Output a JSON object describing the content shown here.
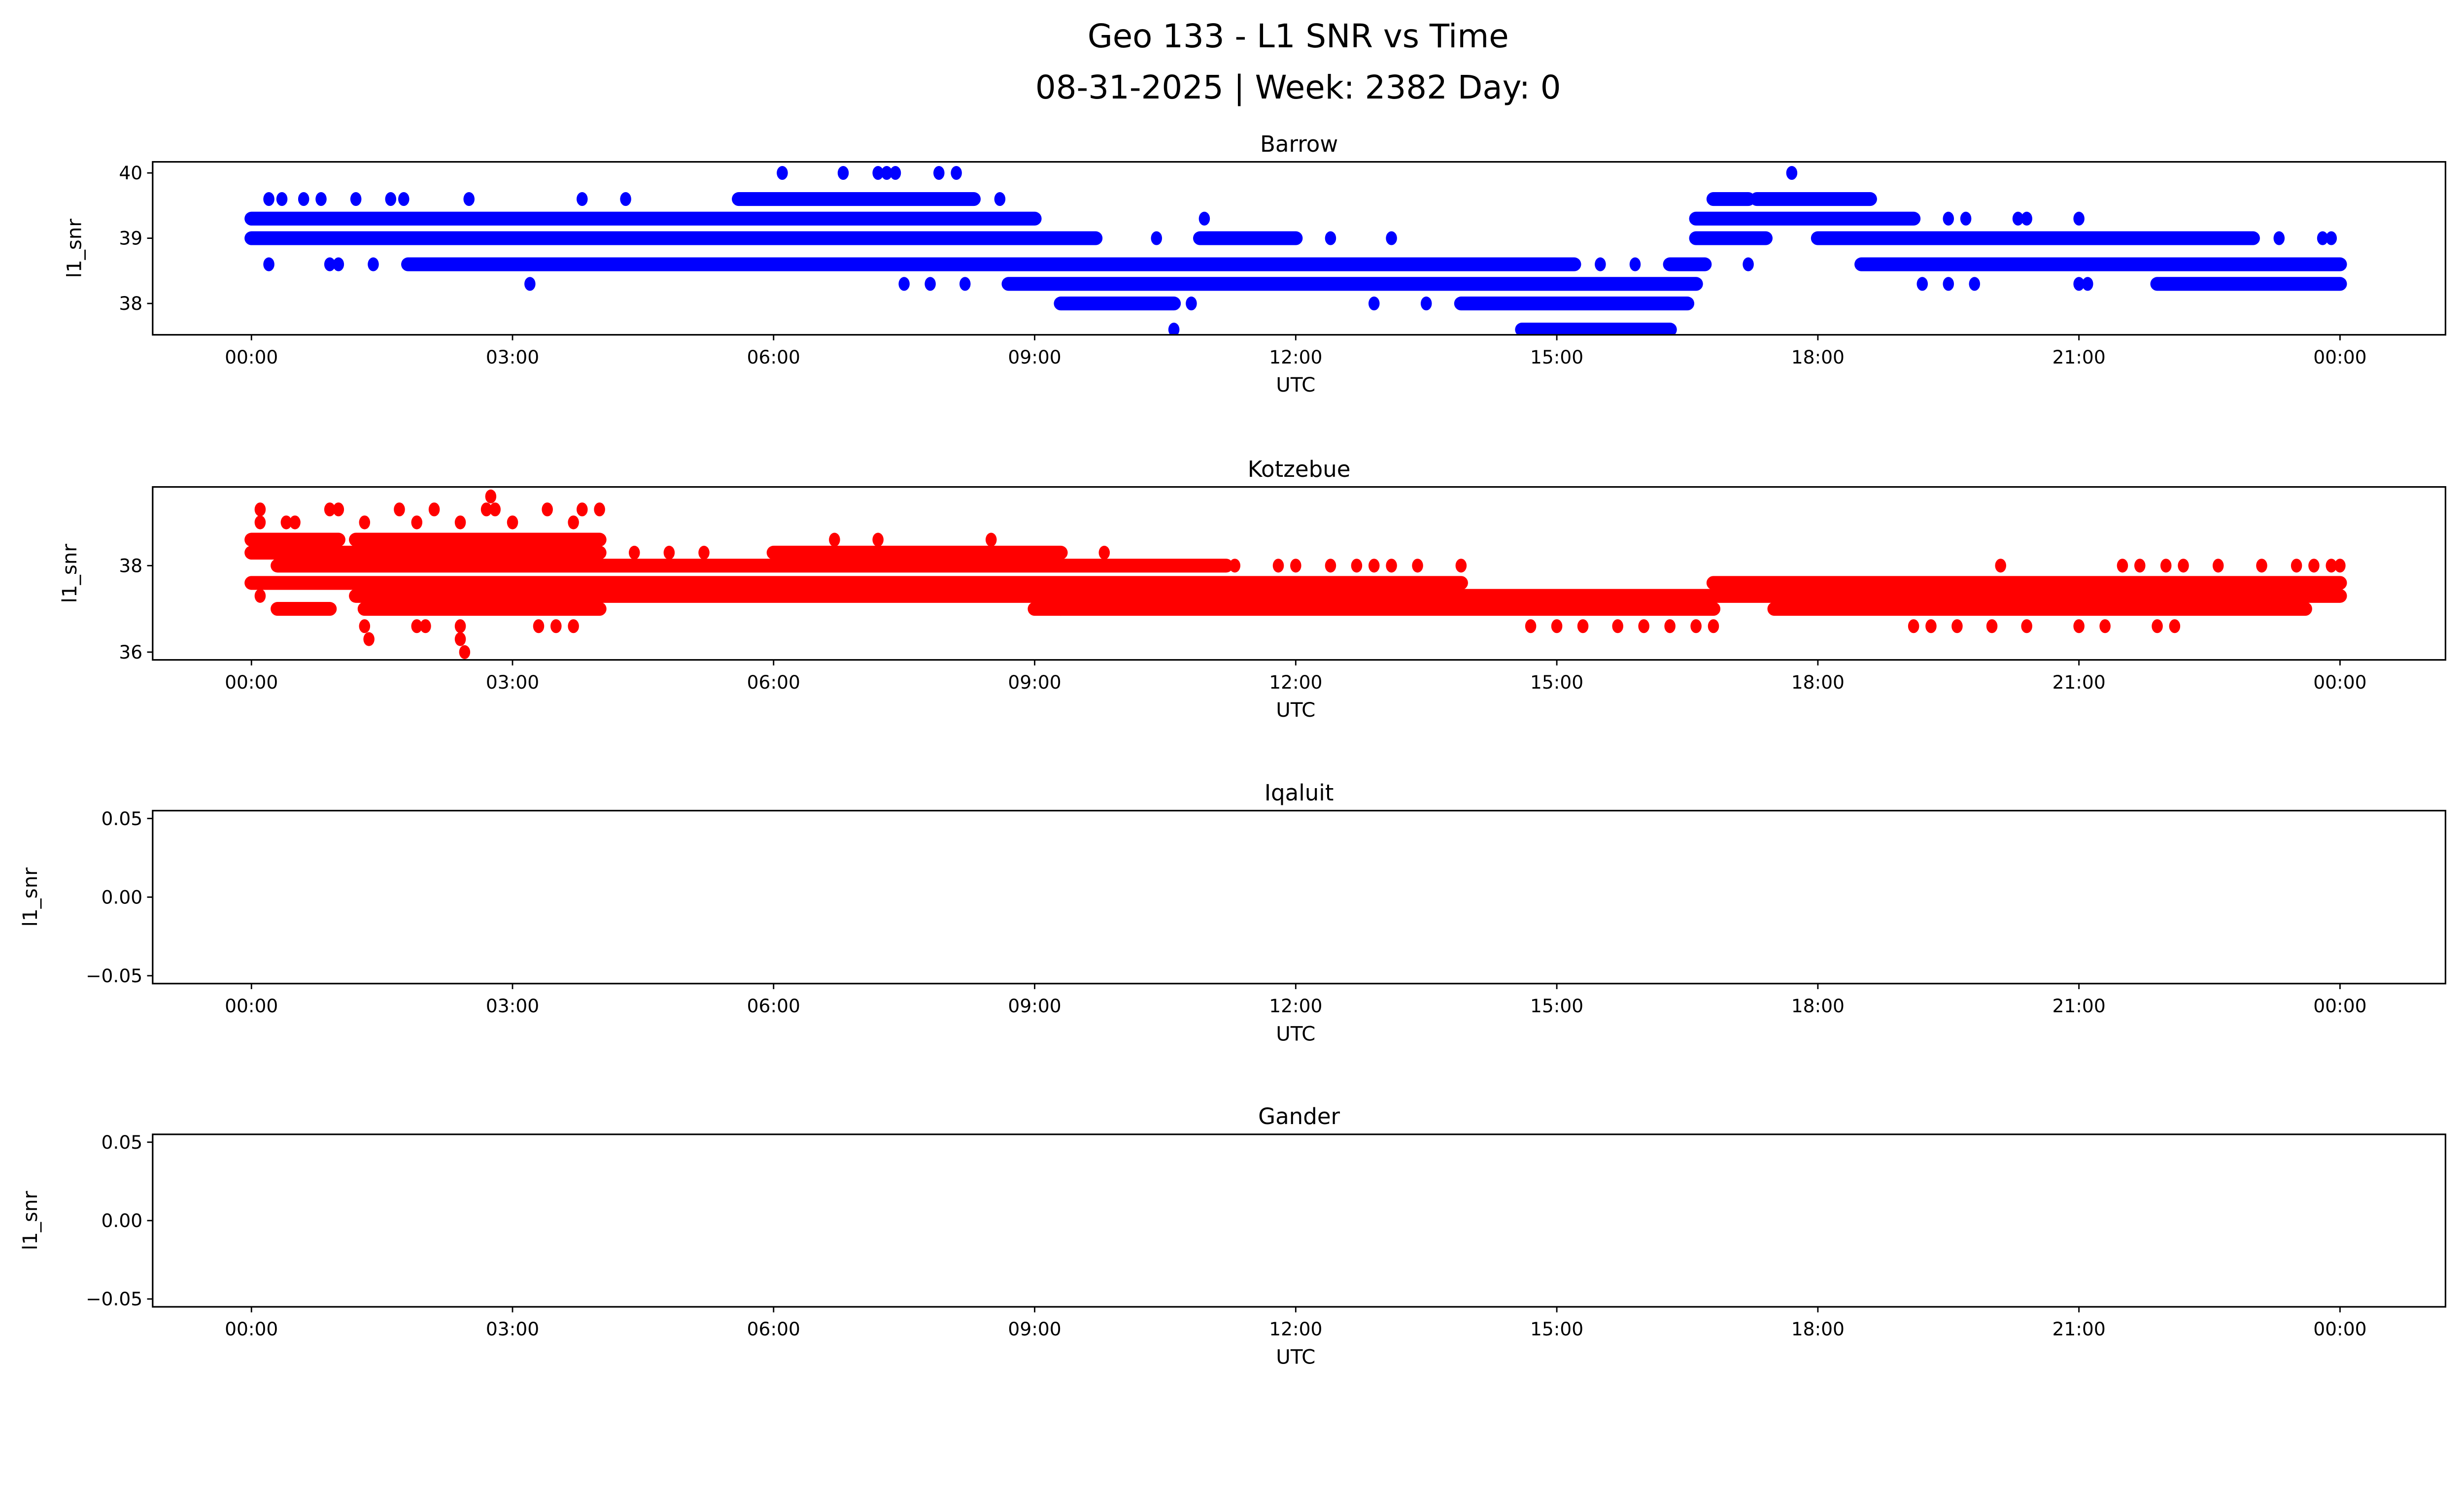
{
  "title_line1": "Geo 133 - L1 SNR vs Time",
  "title_line2": "08-31-2025 | Week: 2382 Day: 0",
  "chart_data": [
    {
      "type": "scatter",
      "title": "Barrow",
      "xlabel": "UTC",
      "ylabel": "l1_snr",
      "color": "#0000ff",
      "xlim_hours": [
        0,
        24
      ],
      "x_ticks": [
        {
          "h": 0,
          "label": "00:00"
        },
        {
          "h": 3,
          "label": "03:00"
        },
        {
          "h": 6,
          "label": "06:00"
        },
        {
          "h": 9,
          "label": "09:00"
        },
        {
          "h": 12,
          "label": "12:00"
        },
        {
          "h": 15,
          "label": "15:00"
        },
        {
          "h": 18,
          "label": "18:00"
        },
        {
          "h": 21,
          "label": "21:00"
        },
        {
          "h": 24,
          "label": "00:00"
        }
      ],
      "ylim": [
        37.52,
        40.17
      ],
      "y_ticks": [
        {
          "v": 38,
          "label": "38"
        },
        {
          "v": 39,
          "label": "39"
        },
        {
          "v": 40,
          "label": "40"
        }
      ],
      "dense_runs": [
        [
          39.3,
          0,
          9.0
        ],
        [
          39.3,
          16.6,
          19.1
        ],
        [
          39.0,
          0,
          9.7
        ],
        [
          39.0,
          10.9,
          12.0
        ],
        [
          39.0,
          16.6,
          17.4
        ],
        [
          39.0,
          18.0,
          23.0
        ],
        [
          38.6,
          1.8,
          15.2
        ],
        [
          38.6,
          16.3,
          16.7
        ],
        [
          38.6,
          18.5,
          24
        ],
        [
          38.3,
          8.7,
          16.6
        ],
        [
          38.3,
          21.9,
          24
        ],
        [
          38.0,
          9.3,
          10.6
        ],
        [
          38.0,
          13.9,
          16.5
        ],
        [
          37.6,
          14.6,
          16.3
        ],
        [
          39.6,
          5.6,
          8.3
        ],
        [
          39.6,
          16.8,
          17.2
        ],
        [
          39.6,
          17.3,
          18.6
        ]
      ],
      "points": [
        [
          0.2,
          39.6
        ],
        [
          0.35,
          39.6
        ],
        [
          0.6,
          39.6
        ],
        [
          0.8,
          39.6
        ],
        [
          1.2,
          39.6
        ],
        [
          1.6,
          39.6
        ],
        [
          1.75,
          39.6
        ],
        [
          2.5,
          39.6
        ],
        [
          3.8,
          39.6
        ],
        [
          4.3,
          39.6
        ],
        [
          8.6,
          39.6
        ],
        [
          6.1,
          40
        ],
        [
          6.8,
          40
        ],
        [
          7.2,
          40
        ],
        [
          7.3,
          40
        ],
        [
          7.4,
          40
        ],
        [
          7.9,
          40
        ],
        [
          8.1,
          40
        ],
        [
          17.7,
          40
        ],
        [
          10.95,
          39.3
        ],
        [
          19.5,
          39.3
        ],
        [
          19.7,
          39.3
        ],
        [
          20.3,
          39.3
        ],
        [
          20.4,
          39.3
        ],
        [
          21.0,
          39.3
        ],
        [
          10.4,
          39.0
        ],
        [
          12.4,
          39.0
        ],
        [
          13.1,
          39.0
        ],
        [
          23.3,
          39.0
        ],
        [
          23.8,
          39.0
        ],
        [
          23.9,
          39.0
        ],
        [
          0.2,
          38.6
        ],
        [
          0.9,
          38.6
        ],
        [
          1.0,
          38.6
        ],
        [
          1.4,
          38.6
        ],
        [
          15.5,
          38.6
        ],
        [
          15.9,
          38.6
        ],
        [
          17.2,
          38.6
        ],
        [
          3.2,
          38.3
        ],
        [
          7.5,
          38.3
        ],
        [
          7.8,
          38.3
        ],
        [
          8.2,
          38.3
        ],
        [
          19.2,
          38.3
        ],
        [
          19.5,
          38.3
        ],
        [
          19.8,
          38.3
        ],
        [
          21.0,
          38.3
        ],
        [
          21.1,
          38.3
        ],
        [
          10.8,
          38.0
        ],
        [
          12.9,
          38.0
        ],
        [
          13.5,
          38.0
        ],
        [
          10.6,
          37.6
        ]
      ]
    },
    {
      "type": "scatter",
      "title": "Kotzebue",
      "xlabel": "UTC",
      "ylabel": "l1_snr",
      "color": "#ff0000",
      "xlim_hours": [
        0,
        24
      ],
      "x_ticks": [
        {
          "h": 0,
          "label": "00:00"
        },
        {
          "h": 3,
          "label": "03:00"
        },
        {
          "h": 6,
          "label": "06:00"
        },
        {
          "h": 9,
          "label": "09:00"
        },
        {
          "h": 12,
          "label": "12:00"
        },
        {
          "h": 15,
          "label": "15:00"
        },
        {
          "h": 18,
          "label": "18:00"
        },
        {
          "h": 21,
          "label": "21:00"
        },
        {
          "h": 24,
          "label": "00:00"
        }
      ],
      "ylim": [
        35.82,
        39.82
      ],
      "y_ticks": [
        {
          "v": 36,
          "label": "36"
        },
        {
          "v": 38,
          "label": "38"
        }
      ],
      "dense_runs": [
        [
          38.0,
          0.3,
          11.2
        ],
        [
          37.6,
          0,
          13.9
        ],
        [
          37.6,
          16.8,
          24
        ],
        [
          37.3,
          1.2,
          24
        ],
        [
          37.0,
          0.3,
          0.9
        ],
        [
          37.0,
          1.3,
          4.0
        ],
        [
          37.0,
          9.0,
          16.8
        ],
        [
          37.0,
          17.5,
          23.6
        ],
        [
          38.3,
          0,
          4.0
        ],
        [
          38.3,
          6.0,
          9.3
        ],
        [
          38.6,
          0,
          1.0
        ],
        [
          38.6,
          1.2,
          4.0
        ]
      ],
      "points": [
        [
          0.1,
          39.3
        ],
        [
          0.9,
          39.3
        ],
        [
          1.0,
          39.3
        ],
        [
          1.7,
          39.3
        ],
        [
          2.1,
          39.3
        ],
        [
          2.7,
          39.3
        ],
        [
          2.8,
          39.3
        ],
        [
          3.4,
          39.3
        ],
        [
          3.8,
          39.3
        ],
        [
          4.0,
          39.3
        ],
        [
          2.75,
          39.6
        ],
        [
          0.1,
          39.0
        ],
        [
          0.4,
          39.0
        ],
        [
          0.5,
          39.0
        ],
        [
          1.3,
          39.0
        ],
        [
          1.9,
          39.0
        ],
        [
          2.4,
          39.0
        ],
        [
          3.0,
          39.0
        ],
        [
          3.7,
          39.0
        ],
        [
          6.7,
          38.6
        ],
        [
          7.2,
          38.6
        ],
        [
          8.5,
          38.6
        ],
        [
          4.4,
          38.3
        ],
        [
          4.8,
          38.3
        ],
        [
          5.2,
          38.3
        ],
        [
          9.8,
          38.3
        ],
        [
          11.3,
          38.0
        ],
        [
          11.8,
          38.0
        ],
        [
          12.0,
          38.0
        ],
        [
          12.4,
          38.0
        ],
        [
          12.7,
          38.0
        ],
        [
          12.9,
          38.0
        ],
        [
          13.1,
          38.0
        ],
        [
          13.4,
          38.0
        ],
        [
          13.9,
          38.0
        ],
        [
          20.1,
          38.0
        ],
        [
          21.5,
          38.0
        ],
        [
          21.7,
          38.0
        ],
        [
          22.0,
          38.0
        ],
        [
          22.2,
          38.0
        ],
        [
          22.6,
          38.0
        ],
        [
          23.1,
          38.0
        ],
        [
          23.5,
          38.0
        ],
        [
          23.7,
          38.0
        ],
        [
          23.9,
          38.0
        ],
        [
          24.0,
          38.0
        ],
        [
          0.1,
          37.3
        ],
        [
          9.3,
          37.0
        ],
        [
          1.3,
          36.6
        ],
        [
          1.9,
          36.6
        ],
        [
          2.0,
          36.6
        ],
        [
          2.4,
          36.6
        ],
        [
          3.3,
          36.6
        ],
        [
          3.5,
          36.6
        ],
        [
          3.7,
          36.6
        ],
        [
          14.7,
          36.6
        ],
        [
          15.0,
          36.6
        ],
        [
          15.3,
          36.6
        ],
        [
          15.7,
          36.6
        ],
        [
          16.0,
          36.6
        ],
        [
          16.3,
          36.6
        ],
        [
          16.6,
          36.6
        ],
        [
          16.8,
          36.6
        ],
        [
          19.1,
          36.6
        ],
        [
          19.3,
          36.6
        ],
        [
          19.6,
          36.6
        ],
        [
          20.0,
          36.6
        ],
        [
          20.4,
          36.6
        ],
        [
          21.0,
          36.6
        ],
        [
          21.3,
          36.6
        ],
        [
          21.9,
          36.6
        ],
        [
          22.1,
          36.6
        ],
        [
          1.35,
          36.3
        ],
        [
          2.4,
          36.3
        ],
        [
          2.45,
          36.0
        ]
      ]
    },
    {
      "type": "scatter",
      "title": "Iqaluit",
      "xlabel": "UTC",
      "ylabel": "l1_snr",
      "color": "#000000",
      "xlim_hours": [
        0,
        24
      ],
      "x_ticks": [
        {
          "h": 0,
          "label": "00:00"
        },
        {
          "h": 3,
          "label": "03:00"
        },
        {
          "h": 6,
          "label": "06:00"
        },
        {
          "h": 9,
          "label": "09:00"
        },
        {
          "h": 12,
          "label": "12:00"
        },
        {
          "h": 15,
          "label": "15:00"
        },
        {
          "h": 18,
          "label": "18:00"
        },
        {
          "h": 21,
          "label": "21:00"
        },
        {
          "h": 24,
          "label": "00:00"
        }
      ],
      "ylim": [
        -0.055,
        0.055
      ],
      "y_ticks": [
        {
          "v": 0.05,
          "label": "0.05"
        },
        {
          "v": 0,
          "label": "0.00"
        },
        {
          "v": -0.05,
          "label": "−0.05"
        }
      ],
      "dense_runs": [],
      "points": []
    },
    {
      "type": "scatter",
      "title": "Gander",
      "xlabel": "UTC",
      "ylabel": "l1_snr",
      "color": "#000000",
      "xlim_hours": [
        0,
        24
      ],
      "x_ticks": [
        {
          "h": 0,
          "label": "00:00"
        },
        {
          "h": 3,
          "label": "03:00"
        },
        {
          "h": 6,
          "label": "06:00"
        },
        {
          "h": 9,
          "label": "09:00"
        },
        {
          "h": 12,
          "label": "12:00"
        },
        {
          "h": 15,
          "label": "15:00"
        },
        {
          "h": 18,
          "label": "18:00"
        },
        {
          "h": 21,
          "label": "21:00"
        },
        {
          "h": 24,
          "label": "00:00"
        }
      ],
      "ylim": [
        -0.055,
        0.055
      ],
      "y_ticks": [
        {
          "v": 0.05,
          "label": "0.05"
        },
        {
          "v": 0,
          "label": "0.00"
        },
        {
          "v": -0.05,
          "label": "−0.05"
        }
      ],
      "dense_runs": [],
      "points": []
    }
  ]
}
